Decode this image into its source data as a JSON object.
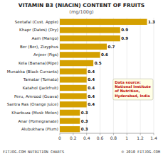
{
  "chart_data": {
    "type": "bar",
    "orientation": "horizontal",
    "title": "VITAMIN B3 (NIACIN) CONTENT OF FRUITS",
    "subtitle": "(mg/100g)",
    "categories": [
      "Seetafal (Cust. Apple)",
      "Khapr (Dates) (Dry)",
      "Aam (Mango)",
      "Ber (Ber), Zizyphus",
      "Anjeer (Figs)",
      "Kela (Banana)(Ripe)",
      "Munakka (Black Currants)",
      "Tamatar (Tomato)",
      "Katahol (Jackfruit)",
      "Peru, Amrood (Guava)",
      "Santra Ras (Orange Juice)",
      "Kharbuza (Musk Melon)",
      "Anar (Pomegranate)",
      "Alubukhara (Plum)"
    ],
    "values": [
      1.3,
      0.9,
      0.9,
      0.7,
      0.6,
      0.5,
      0.4,
      0.4,
      0.4,
      0.4,
      0.4,
      0.3,
      0.3,
      0.3
    ],
    "color": "#D4A000",
    "xlim": [
      0,
      1.4
    ],
    "xticks": [
      0,
      0.2,
      0.4,
      0.6,
      0.8,
      1,
      1.2,
      1.4
    ],
    "grid": true,
    "data_labels": true,
    "annotations": [
      "Data source:\nNational Institute\nof Nutrition,\nHyderabad, India",
      "FITJOG.COM NUTRITION CHARTS",
      "© 2010 FITJOG.COM"
    ]
  }
}
